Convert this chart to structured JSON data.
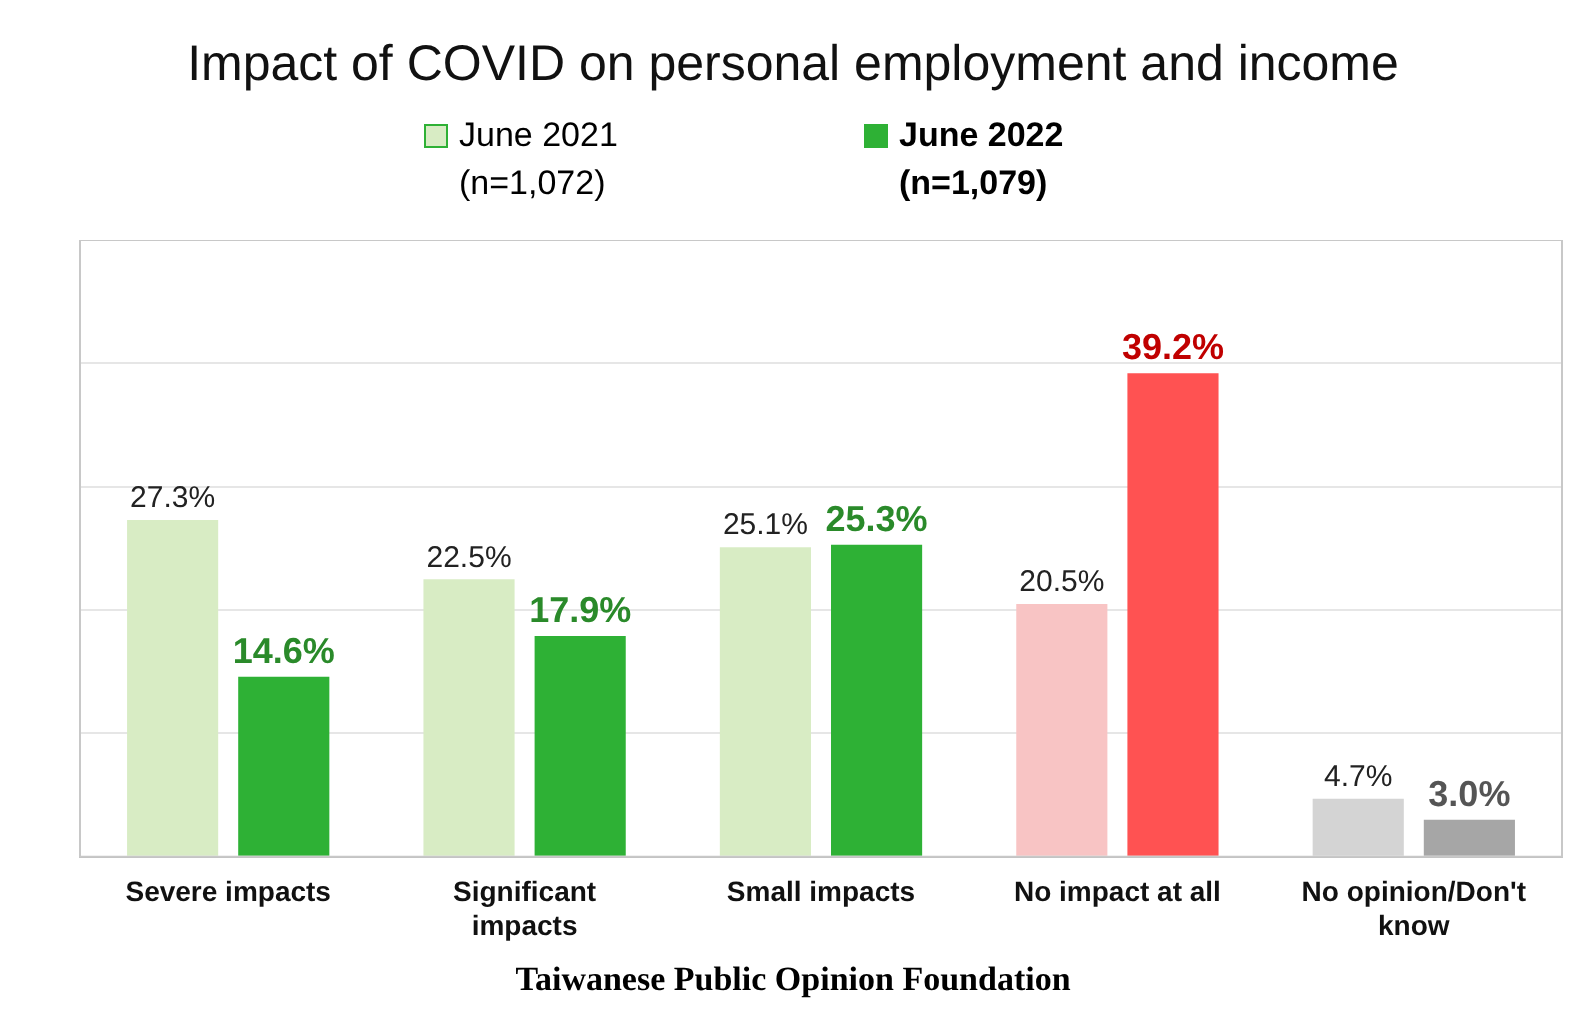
{
  "chart_data": {
    "type": "bar",
    "title": "Impact of COVID on personal employment and income",
    "categories": [
      "Severe impacts",
      "Significant impacts",
      "Small impacts",
      "No impact at all",
      "No opinion/Don't know"
    ],
    "series": [
      {
        "name": "June 2021 (n=1,072)",
        "color": "#d8ecc4",
        "colors": [
          "#d8ecc4",
          "#d8ecc4",
          "#d8ecc4",
          "#f8c4c4",
          "#d4d4d4"
        ],
        "values": [
          27.3,
          22.5,
          25.1,
          20.5,
          4.7
        ],
        "value_labels": [
          "27.3%",
          "22.5%",
          "25.1%",
          "20.5%",
          "4.7%"
        ]
      },
      {
        "name": "June 2022 (n=1,079)",
        "color": "#2eb135",
        "colors": [
          "#2eb135",
          "#2eb135",
          "#2eb135",
          "#ff5252",
          "#a6a6a6"
        ],
        "values": [
          14.6,
          17.9,
          25.3,
          39.2,
          3.0
        ],
        "value_labels": [
          "14.6%",
          "17.9%",
          "25.3%",
          "39.2%",
          "3.0%"
        ]
      }
    ],
    "ylim": [
      0,
      50
    ],
    "yticks": [
      {
        "value": 0,
        "label": null
      },
      {
        "value": 10,
        "label": null
      },
      {
        "value": 20,
        "label": null
      },
      {
        "value": 30,
        "label": null
      },
      {
        "value": 40,
        "label": null
      },
      {
        "value": 50,
        "label": null
      }
    ],
    "grid": "y",
    "legend": "top",
    "tick_labels": "x",
    "annotations": [
      "Taiwanese Public Opinion Foundation"
    ]
  }
}
